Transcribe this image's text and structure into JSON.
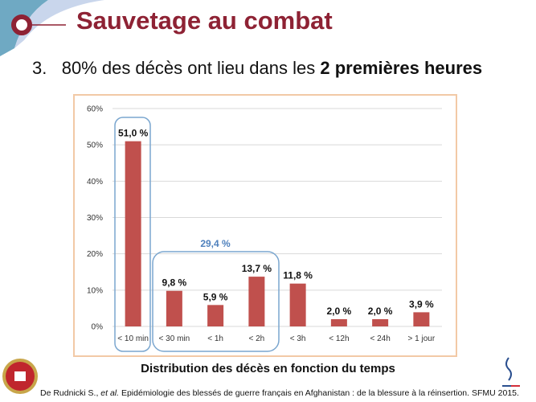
{
  "slide": {
    "title": "Sauvetage au combat",
    "point_number": "3.",
    "point_text": "80% des décès ont lieu dans les ",
    "point_bold": "2 premières heures",
    "caption": "Distribution des décès en fonction du temps",
    "reference_author": "De Rudnicki S., ",
    "reference_etal": "et al.",
    "reference_rest": " Epidémiologie des blessés de guerre français en Afghanistan : de la blessure à la réinsertion. SFMU 2015.",
    "logo_left_text": "CMA",
    "logo_right_text": "Service de santé des armées",
    "colors": {
      "title": "#8e2234",
      "bar": "#c0504d",
      "group_highlight": "#7aa6cf",
      "group_label": "#4f81bd"
    }
  },
  "chart_data": {
    "type": "bar",
    "categories": [
      "< 10 min",
      "< 30 min",
      "< 1h",
      "< 2h",
      "< 3h",
      "< 12h",
      "< 24h",
      "> 1 jour"
    ],
    "values": [
      51.0,
      9.8,
      5.9,
      13.7,
      11.8,
      2.0,
      2.0,
      3.9
    ],
    "data_labels": [
      "51,0 %",
      "9,8 %",
      "5,9 %",
      "13,7 %",
      "11,8 %",
      "2,0 %",
      "2,0 %",
      "3,9 %"
    ],
    "ylim": [
      0,
      60
    ],
    "yticks": [
      "0%",
      "10%",
      "20%",
      "30%",
      "40%",
      "50%",
      "60%"
    ],
    "grid": true,
    "annotation": "29,4 %"
  }
}
